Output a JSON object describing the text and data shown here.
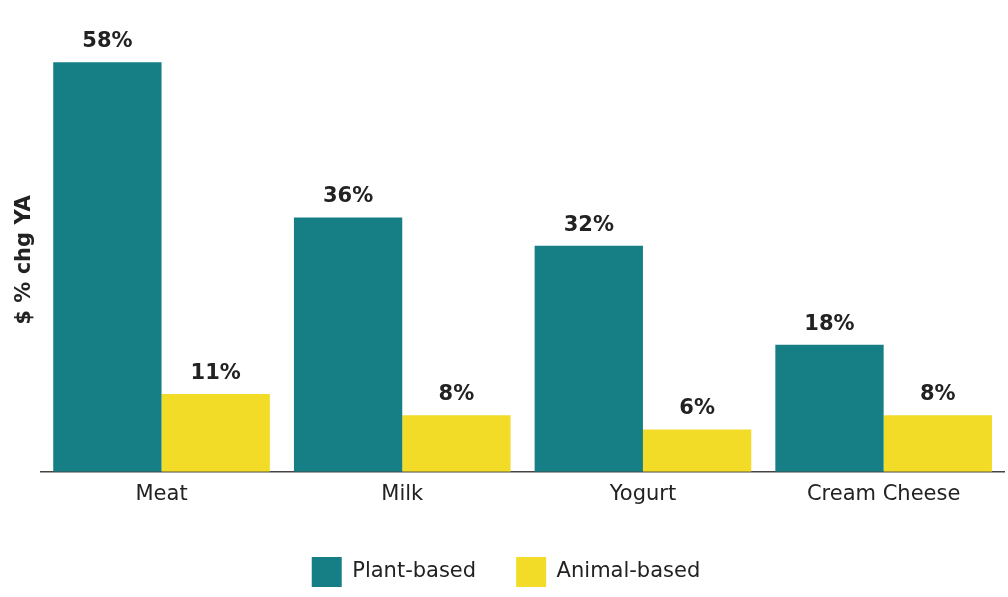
{
  "chart_data": {
    "type": "bar",
    "ylabel": "$ % chg YA",
    "categories": [
      "Meat",
      "Milk",
      "Yogurt",
      "Cream Cheese"
    ],
    "series": [
      {
        "name": "Plant-based",
        "color": "#167f86",
        "values": [
          58,
          36,
          32,
          18
        ],
        "value_labels": [
          "58%",
          "36%",
          "32%",
          "18%"
        ]
      },
      {
        "name": "Animal-based",
        "color": "#f2dc27",
        "values": [
          11,
          8,
          6,
          8
        ],
        "value_labels": [
          "11%",
          "8%",
          "6%",
          "8%"
        ]
      }
    ],
    "tick_labels": "x",
    "grid": false,
    "legend": "bottom"
  }
}
